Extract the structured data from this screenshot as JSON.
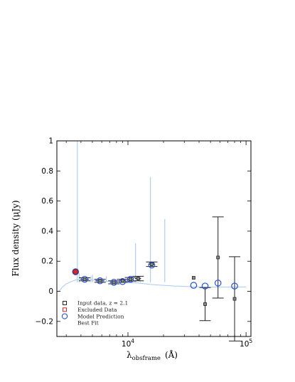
{
  "chart_data": {
    "type": "scatter",
    "title": "",
    "xlabel_main": "λ",
    "xlabel_sub": "obsframe",
    "xlabel_units": "(Å)",
    "ylabel": "Flux density (μJy)",
    "x_scale": "log",
    "xlim": [
      2500,
      110000
    ],
    "ylim": [
      -0.3,
      1.0
    ],
    "x_tick_labels": [
      {
        "base": "10",
        "exp": "4",
        "value": 10000
      },
      {
        "base": "10",
        "exp": "5",
        "value": 100000
      }
    ],
    "y_ticks": [
      -0.2,
      0,
      0.2,
      0.4,
      0.6,
      0.8,
      1
    ],
    "y_tick_labels": [
      "−0.2",
      "0",
      "0.2",
      "0.4",
      "0.6",
      "0.8",
      "1"
    ],
    "grid": false,
    "legend_position": "lower-left",
    "legend": [
      {
        "label": "Input data, z = 2.1",
        "marker": "square",
        "color": "#222222"
      },
      {
        "label": "Excluded Data",
        "marker": "square",
        "color": "#d62728"
      },
      {
        "label": "Model Prediction",
        "marker": "circle",
        "color": "#1f4fe0"
      },
      {
        "label": "Best Fit",
        "marker": "line",
        "color": "#a9c9ef"
      }
    ],
    "input_data": [
      {
        "x": 4300,
        "y": 0.08,
        "yerr": 0.01,
        "xerr": [
          350,
          350
        ]
      },
      {
        "x": 5800,
        "y": 0.07,
        "yerr": 0.01,
        "xerr": [
          500,
          500
        ]
      },
      {
        "x": 7600,
        "y": 0.06,
        "yerr": 0.01,
        "xerr": [
          550,
          550
        ]
      },
      {
        "x": 9000,
        "y": 0.07,
        "yerr": 0.01,
        "xerr": [
          500,
          500
        ]
      },
      {
        "x": 10500,
        "y": 0.08,
        "yerr": 0.012,
        "xerr": [
          600,
          600
        ]
      },
      {
        "x": 12200,
        "y": 0.085,
        "yerr": 0.015,
        "xerr": [
          700,
          700
        ]
      },
      {
        "x": 15900,
        "y": 0.18,
        "yerr": 0.015,
        "xerr": [
          1000,
          1000
        ]
      },
      {
        "x": 36000,
        "y": 0.09,
        "yerr": 0.0,
        "xerr": [
          0,
          0
        ]
      },
      {
        "x": 45000,
        "y": -0.085,
        "yerr": 0.11,
        "xerr": [
          0,
          0
        ]
      },
      {
        "x": 57900,
        "y": 0.225,
        "yerr": 0.27,
        "xerr": [
          0,
          0
        ]
      },
      {
        "x": 80000,
        "y": -0.05,
        "yerr": 0.28,
        "xerr": [
          0,
          0
        ]
      }
    ],
    "excluded_data": [
      {
        "x": 3600,
        "y": 0.13
      }
    ],
    "model_prediction": [
      {
        "x": 3600,
        "y": 0.13
      },
      {
        "x": 4300,
        "y": 0.08
      },
      {
        "x": 5800,
        "y": 0.07
      },
      {
        "x": 7600,
        "y": 0.06
      },
      {
        "x": 9000,
        "y": 0.065
      },
      {
        "x": 10500,
        "y": 0.08
      },
      {
        "x": 15900,
        "y": 0.175
      },
      {
        "x": 36000,
        "y": 0.04
      },
      {
        "x": 45000,
        "y": 0.035
      },
      {
        "x": 57900,
        "y": 0.055
      },
      {
        "x": 80000,
        "y": 0.035
      }
    ],
    "best_fit_continuum": [
      [
        2600,
        0.0
      ],
      [
        2800,
        0.03
      ],
      [
        3000,
        0.05
      ],
      [
        3300,
        0.065
      ],
      [
        3600,
        0.075
      ],
      [
        4000,
        0.08
      ],
      [
        4500,
        0.08
      ],
      [
        5000,
        0.075
      ],
      [
        6000,
        0.07
      ],
      [
        7000,
        0.065
      ],
      [
        8000,
        0.06
      ],
      [
        10000,
        0.058
      ],
      [
        12000,
        0.056
      ],
      [
        14000,
        0.05
      ],
      [
        16000,
        0.045
      ],
      [
        20000,
        0.04
      ],
      [
        25000,
        0.035
      ],
      [
        30000,
        0.033
      ],
      [
        40000,
        0.03
      ],
      [
        50000,
        0.028
      ],
      [
        60000,
        0.028
      ],
      [
        80000,
        0.028
      ],
      [
        100000,
        0.03
      ]
    ],
    "best_fit_lines": [
      {
        "x": 3727,
        "y": 1.0
      },
      {
        "x": 3869,
        "y": 0.12
      },
      {
        "x": 4861,
        "y": 0.1
      },
      {
        "x": 5007,
        "y": 0.11
      },
      {
        "x": 6563,
        "y": 0.1
      },
      {
        "x": 11600,
        "y": 0.32
      },
      {
        "x": 12700,
        "y": 0.1
      },
      {
        "x": 15500,
        "y": 0.76
      },
      {
        "x": 20500,
        "y": 0.48
      }
    ]
  },
  "colors": {
    "input": "#222222",
    "excluded": "#d62728",
    "model": "#1f4fe0",
    "best_fit": "#a9c9ef"
  }
}
